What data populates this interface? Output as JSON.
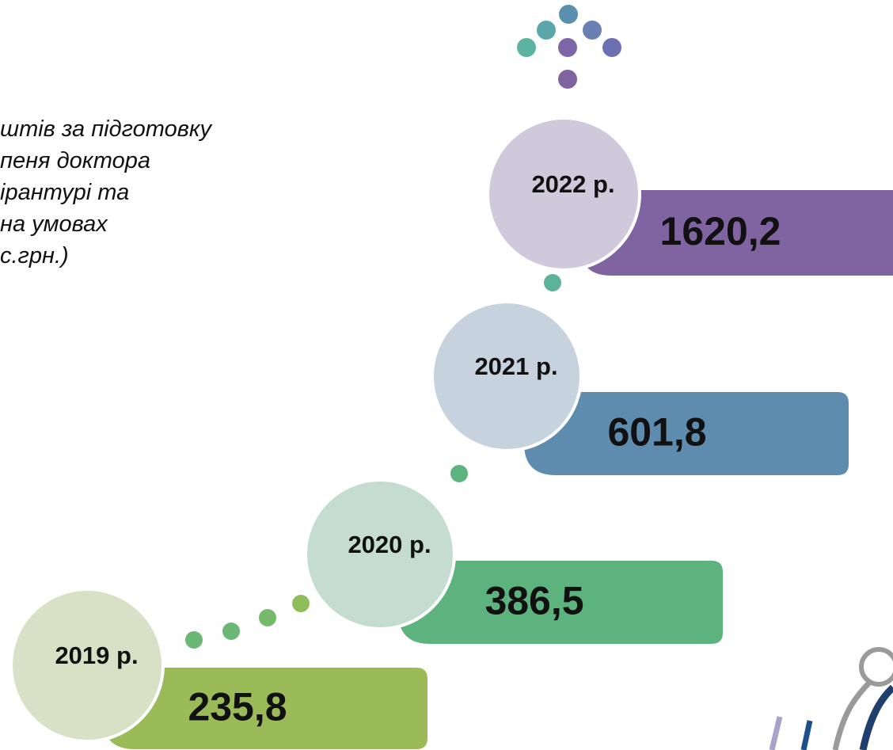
{
  "title_lines": [
    "штів за підготовку",
    "пеня доктора",
    "ірантурі та",
    "на умовах",
    "с.грн.)"
  ],
  "items": [
    {
      "year": "2019 р.",
      "value": "235,8"
    },
    {
      "year": "2020 р.",
      "value": "386,5"
    },
    {
      "year": "2021 р.",
      "value": "601,8"
    },
    {
      "year": "2022 р.",
      "value": "1620,2"
    }
  ]
}
